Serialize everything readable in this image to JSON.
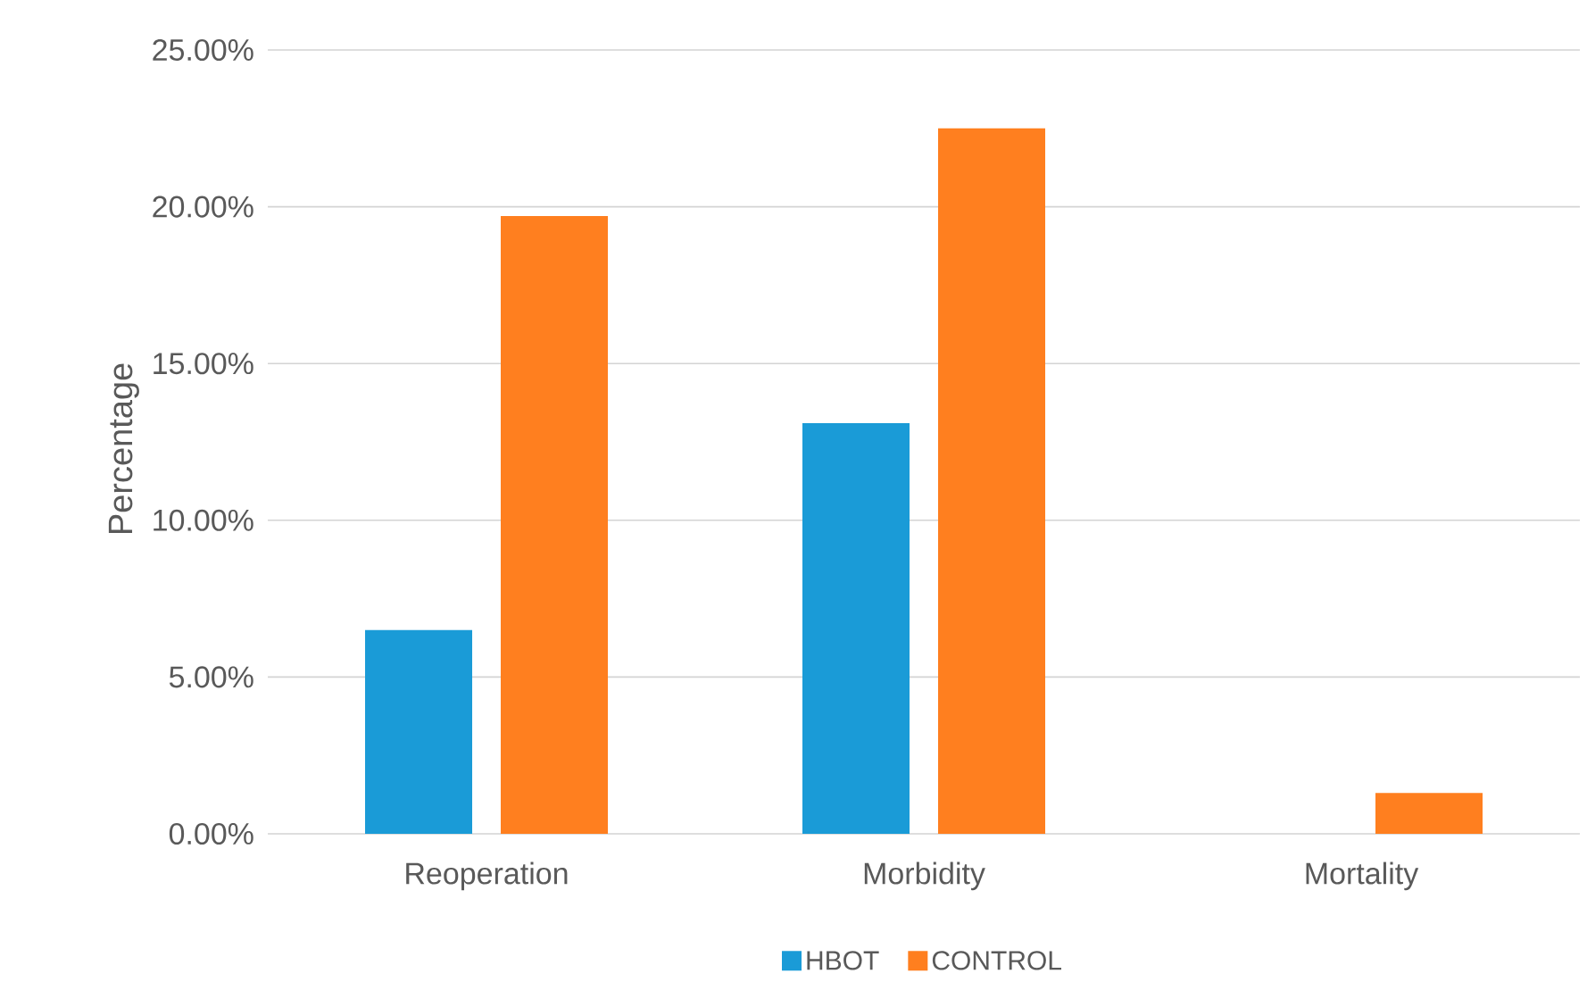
{
  "chart_data": {
    "type": "bar",
    "ylabel": "Percentage",
    "categories": [
      "Reoperation",
      "Morbidity",
      "Mortality"
    ],
    "series": [
      {
        "name": "HBOT",
        "color": "#1a9bd7",
        "values": [
          6.5,
          13.1,
          0
        ]
      },
      {
        "name": "CONTROL",
        "color": "#ff7f1f",
        "values": [
          19.7,
          22.5,
          1.3
        ]
      }
    ],
    "ylim": [
      0,
      25
    ],
    "yticks": [
      {
        "value": 0,
        "label": "0.00%"
      },
      {
        "value": 5,
        "label": "5.00%"
      },
      {
        "value": 10,
        "label": "10.00%"
      },
      {
        "value": 15,
        "label": "15.00%"
      },
      {
        "value": 20,
        "label": "20.00%"
      },
      {
        "value": 25,
        "label": "25.00%"
      }
    ],
    "grid": "y",
    "legend": "bottom"
  }
}
